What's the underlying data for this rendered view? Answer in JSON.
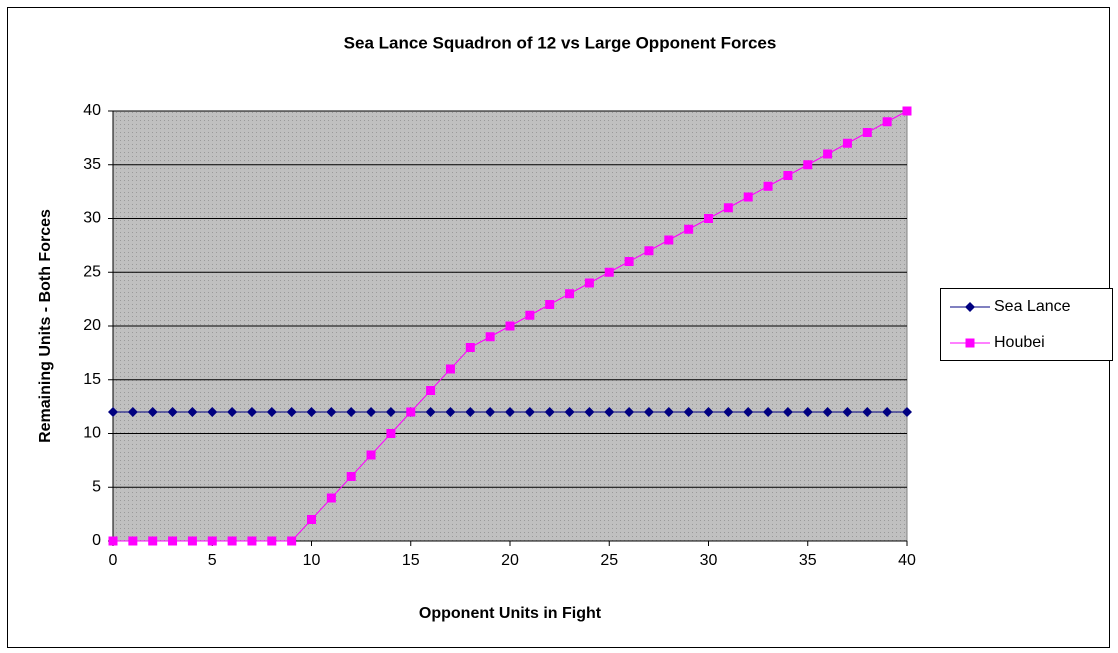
{
  "chart_data": {
    "type": "line",
    "title": "Sea Lance Squadron of 12 vs Large Opponent Forces",
    "xlabel": "Opponent Units in Fight",
    "ylabel": "Remaining Units - Both Forces",
    "x": [
      0,
      1,
      2,
      3,
      4,
      5,
      6,
      7,
      8,
      9,
      10,
      11,
      12,
      13,
      14,
      15,
      16,
      17,
      18,
      19,
      20,
      21,
      22,
      23,
      24,
      25,
      26,
      27,
      28,
      29,
      30,
      31,
      32,
      33,
      34,
      35,
      36,
      37,
      38,
      39,
      40
    ],
    "series": [
      {
        "name": "Sea Lance",
        "color": "#000080",
        "marker": "diamond",
        "values": [
          12,
          12,
          12,
          12,
          12,
          12,
          12,
          12,
          12,
          12,
          12,
          12,
          12,
          12,
          12,
          12,
          12,
          12,
          12,
          12,
          12,
          12,
          12,
          12,
          12,
          12,
          12,
          12,
          12,
          12,
          12,
          12,
          12,
          12,
          12,
          12,
          12,
          12,
          12,
          12,
          12
        ]
      },
      {
        "name": "Houbei",
        "color": "#ff00ff",
        "marker": "square",
        "values": [
          0,
          0,
          0,
          0,
          0,
          0,
          0,
          0,
          0,
          0,
          2,
          4,
          6,
          8,
          10,
          12,
          14,
          16,
          18,
          19,
          20,
          21,
          22,
          23,
          24,
          25,
          26,
          27,
          28,
          29,
          30,
          31,
          32,
          33,
          34,
          35,
          36,
          37,
          38,
          39,
          40
        ]
      }
    ],
    "xlim": [
      0,
      40
    ],
    "xticks": [
      0,
      5,
      10,
      15,
      20,
      25,
      30,
      35,
      40
    ],
    "ylim": [
      0,
      40
    ],
    "yticks": [
      0,
      5,
      10,
      15,
      20,
      25,
      30,
      35,
      40
    ],
    "grid": true,
    "legend": "right"
  }
}
